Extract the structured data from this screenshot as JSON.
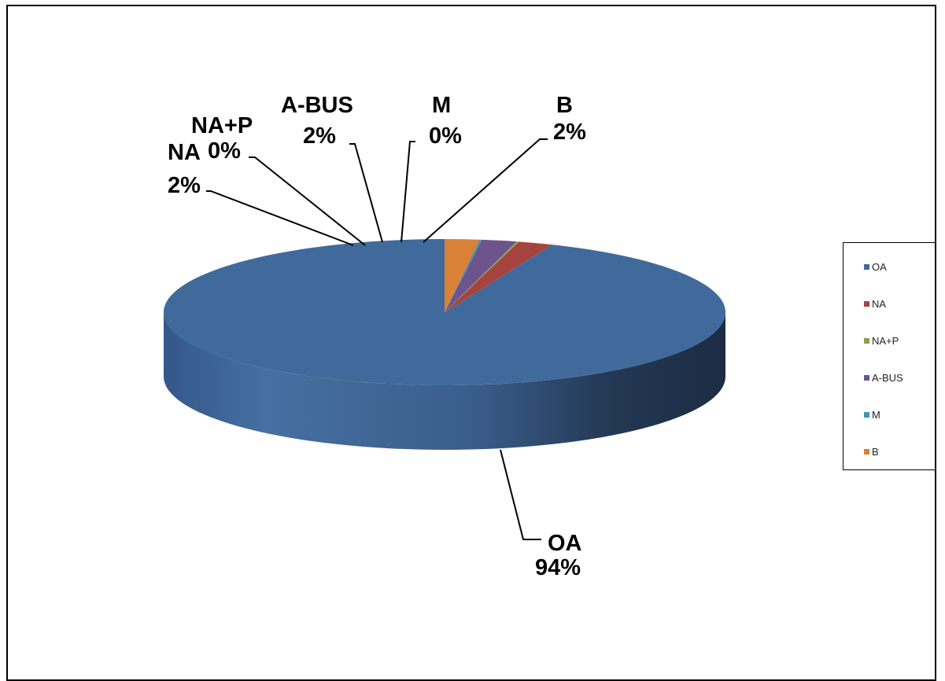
{
  "chart_data": {
    "type": "pie",
    "style": "3d",
    "title": "",
    "categories": [
      "OA",
      "NA",
      "NA+P",
      "A-BUS",
      "M",
      "B"
    ],
    "values": [
      94,
      2,
      0,
      2,
      0,
      2
    ],
    "value_labels": [
      "94%",
      "2%",
      "0%",
      "2%",
      "0%",
      "2%"
    ],
    "colors": [
      "#416A9C",
      "#A6433F",
      "#86A44A",
      "#6E548D",
      "#3D96AE",
      "#DA8137"
    ],
    "legend_position": "right"
  }
}
